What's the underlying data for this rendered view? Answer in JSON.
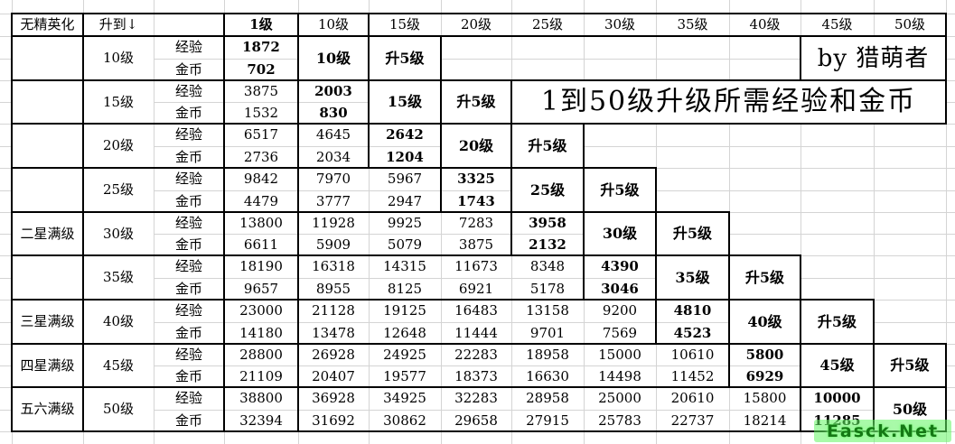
{
  "sheet": {
    "header": {
      "cells": [
        "无精英化",
        "升到↓",
        "",
        "1级",
        "10级",
        "15级",
        "20级",
        "25级",
        "30级",
        "35级",
        "40级",
        "45级",
        "50级"
      ]
    },
    "row_labels": {
      "exp": "经验",
      "gold": "金币"
    },
    "up5_label": "升5级",
    "groups": [
      {
        "star": "",
        "level": "10级",
        "exp": [
          1872
        ],
        "gold": [
          702
        ]
      },
      {
        "star": "",
        "level": "15级",
        "exp": [
          3875,
          2003
        ],
        "gold": [
          1532,
          830
        ]
      },
      {
        "star": "",
        "level": "20级",
        "exp": [
          6517,
          4645,
          2642
        ],
        "gold": [
          2736,
          2034,
          1204
        ]
      },
      {
        "star": "",
        "level": "25级",
        "exp": [
          9842,
          7970,
          5967,
          3325
        ],
        "gold": [
          4479,
          3777,
          2947,
          1743
        ]
      },
      {
        "star": "二星满级",
        "level": "30级",
        "exp": [
          13800,
          11928,
          9925,
          7283,
          3958
        ],
        "gold": [
          6611,
          5909,
          5079,
          3875,
          2132
        ]
      },
      {
        "star": "",
        "level": "35级",
        "exp": [
          18190,
          16318,
          14315,
          11673,
          8348,
          4390
        ],
        "gold": [
          9657,
          8955,
          8125,
          6921,
          5178,
          3046
        ]
      },
      {
        "star": "三星满级",
        "level": "40级",
        "exp": [
          23000,
          21128,
          19125,
          16483,
          13158,
          9200,
          4810
        ],
        "gold": [
          14180,
          13478,
          12648,
          11444,
          9701,
          7569,
          4523
        ]
      },
      {
        "star": "四星满级",
        "level": "45级",
        "exp": [
          28800,
          26928,
          24925,
          22283,
          18958,
          15000,
          10610,
          5800
        ],
        "gold": [
          21109,
          20407,
          19577,
          18373,
          16630,
          14498,
          11452,
          6929
        ]
      },
      {
        "star": "五六满级",
        "level": "50级",
        "exp": [
          38800,
          36928,
          34925,
          32283,
          28958,
          25000,
          20610,
          15800,
          10000
        ],
        "gold": [
          32394,
          31692,
          30862,
          29658,
          27915,
          25783,
          22737,
          18214,
          11285
        ]
      }
    ],
    "by_credit": "by 猎萌者",
    "banner_title": "1到50级升级所需经验和金币",
    "watermark": "Easck.Net",
    "colors": {
      "grid_line": "#d4d4d4",
      "thick_border": "#000000",
      "watermark_green": "#157815",
      "watermark_glow": "#8cff8c"
    }
  }
}
